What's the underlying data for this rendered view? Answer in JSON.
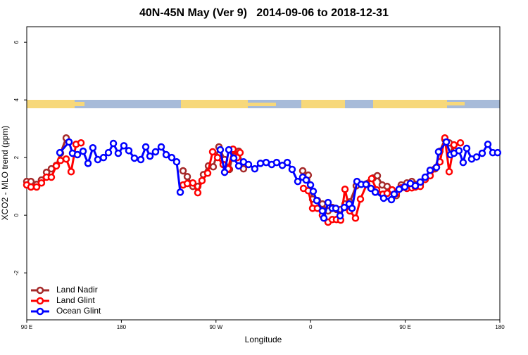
{
  "chart_data": {
    "type": "line",
    "title": "40N-45N May (Ver 9)   2014-09-06 to 2018-12-31",
    "x_label": "Longitude",
    "y_label": "XCO2 - MLO trend (ppm)",
    "xlim": [
      90,
      540
    ],
    "xticks": [
      {
        "value": 90,
        "label": "90 E"
      },
      {
        "value": 180,
        "label": "180"
      },
      {
        "value": 270,
        "label": "90 W"
      },
      {
        "value": 360,
        "label": "0"
      },
      {
        "value": 450,
        "label": "90 E"
      },
      {
        "value": 540,
        "label": "180"
      }
    ],
    "ylim": [
      -3.63,
      6.54
    ],
    "yticks": [
      -2,
      0,
      2,
      4,
      6
    ],
    "legend": "bottom-left",
    "series": [
      {
        "name": "Land Nadir",
        "color": "#a52a2a",
        "x": [
          90,
          94,
          99.4,
          104,
          108.8,
          113.4,
          118.1,
          122.1,
          127.5,
          null,
          238.7,
          242.7,
          248,
          252.7,
          258.1,
          262.8,
          267.4,
          272.8,
          278.2,
          282.8,
          286.9,
          291.6,
          296.2,
          null,
          352.5,
          357.8,
          361.9,
          366.5,
          371.2,
          376.6,
          380.6,
          384.6,
          388.6,
          392.7,
          397.3,
          403.4,
          419.4,
          423.5,
          428.1,
          432.8,
          437.5,
          441.5,
          446.2,
          451.6,
          456.3,
          459.6,
          464.3,
          469,
          473.7,
          478.4,
          483,
          487.7,
          491.8,
          496.4
        ],
        "values": [
          1.17,
          1.17,
          1.07,
          1.22,
          1.49,
          1.61,
          1.73,
          2.15,
          2.68,
          null,
          1.54,
          1.34,
          1.0,
          1.0,
          1.41,
          1.71,
          1.68,
          2.37,
          1.93,
          1.59,
          2.24,
          2.22,
          1.61,
          null,
          1.54,
          1.39,
          0.56,
          0.51,
          0.39,
          0.15,
          0.27,
          0.2,
          0.2,
          0.39,
          0.46,
          1.02,
          1.29,
          1.37,
          1.05,
          1.0,
          0.88,
          0.68,
          1.05,
          1.12,
          1.17,
          1.07,
          1.07,
          1.29,
          1.56,
          1.61,
          2.22,
          2.63,
          2.51,
          2.24
        ]
      },
      {
        "name": "Land Glint",
        "color": "#ff0000",
        "x": [
          90,
          94,
          99.4,
          104,
          108.8,
          113.4,
          118.1,
          122.1,
          127.5,
          132.2,
          136.9,
          141.6,
          null,
          238.7,
          242.7,
          248,
          252.7,
          256.7,
          262.1,
          266.8,
          271.5,
          276.8,
          281.5,
          286.2,
          290.2,
          292.9,
          null,
          353.2,
          357.8,
          361.9,
          366.5,
          371.2,
          376.6,
          380.6,
          384.6,
          388.6,
          392.7,
          397.3,
          402.7,
          407.4,
          413.4,
          418.1,
          422.8,
          428.8,
          432.8,
          437.5,
          441.5,
          446.2,
          451.6,
          456.3,
          459.6,
          464.3,
          469,
          473.7,
          479.7,
          483,
          487.7,
          491.8,
          496.4,
          502.5
        ],
        "values": [
          1.05,
          0.98,
          0.98,
          1.12,
          1.32,
          1.32,
          1.71,
          1.9,
          1.95,
          1.51,
          2.46,
          2.51,
          null,
          1.05,
          1.1,
          1.12,
          0.78,
          1.2,
          1.46,
          2.2,
          2.0,
          1.76,
          1.61,
          2.29,
          2.0,
          2.17,
          null,
          0.93,
          0.85,
          0.24,
          0.24,
          0,
          -0.24,
          -0.15,
          -0.15,
          -0.17,
          0.9,
          0.15,
          -0.1,
          0.56,
          1.07,
          1.27,
          0.88,
          0.73,
          0.76,
          0.88,
          0.76,
          0.95,
          0.93,
          0.95,
          0.98,
          1.0,
          1.24,
          1.37,
          1.66,
          1.85,
          2.68,
          1.51,
          2.44,
          2.51
        ]
      },
      {
        "name": "Ocean Glint",
        "color": "#0000ff",
        "x": [
          121.5,
          130.2,
          133.5,
          138.2,
          143.6,
          148.3,
          152.9,
          157.6,
          163,
          167.7,
          172.4,
          177,
          182.4,
          187.1,
          192.4,
          198.5,
          203.2,
          207.2,
          212.5,
          217.9,
          222.6,
          227.9,
          232.6,
          236,
          null,
          274.1,
          278.2,
          282.2,
          286.9,
          291.6,
          296.2,
          300.9,
          306.9,
          312.3,
          317.7,
          323,
          327.7,
          333.1,
          337.8,
          342.4,
          347.8,
          352.5,
          355.8,
          359.9,
          362.5,
          365.9,
          371.2,
          372.6,
          376.6,
          380.6,
          384,
          388,
          392,
          396.7,
          399.4,
          404.1,
          408.1,
          412.7,
          417.4,
          421.5,
          429.5,
          436.9,
          439.5,
          444.2,
          449.6,
          454.9,
          459.6,
          464.3,
          469,
          473.7,
          479.7,
          481.7,
          489.1,
          493.1,
          496.4,
          501.1,
          505.1,
          508.5,
          513.2,
          517.9,
          523.2,
          528.6,
          533.3,
          537.9
        ],
        "values": [
          2.17,
          2.54,
          2.15,
          2.1,
          2.22,
          1.8,
          2.34,
          1.93,
          2.0,
          2.17,
          2.49,
          2.15,
          2.41,
          2.24,
          1.98,
          1.93,
          2.37,
          2.05,
          2.2,
          2.37,
          2.1,
          2.0,
          1.85,
          0.8,
          null,
          2.27,
          1.49,
          2.27,
          1.98,
          1.71,
          1.85,
          1.76,
          1.61,
          1.8,
          1.83,
          1.76,
          1.83,
          1.73,
          1.83,
          1.59,
          1.17,
          1.32,
          1.22,
          1.05,
          0.83,
          0.51,
          0.15,
          -0.1,
          0.44,
          0.24,
          0.24,
          -0.02,
          0.27,
          0.39,
          0.24,
          1.17,
          1.07,
          1.07,
          0.93,
          0.8,
          0.59,
          0.54,
          0.73,
          0.9,
          0.98,
          1.1,
          1.02,
          1.15,
          1.32,
          1.56,
          1.66,
          2.2,
          2.54,
          2.1,
          2.15,
          2.24,
          1.83,
          2.32,
          1.95,
          2.02,
          2.15,
          2.46,
          2.17,
          2.17
        ]
      }
    ]
  }
}
